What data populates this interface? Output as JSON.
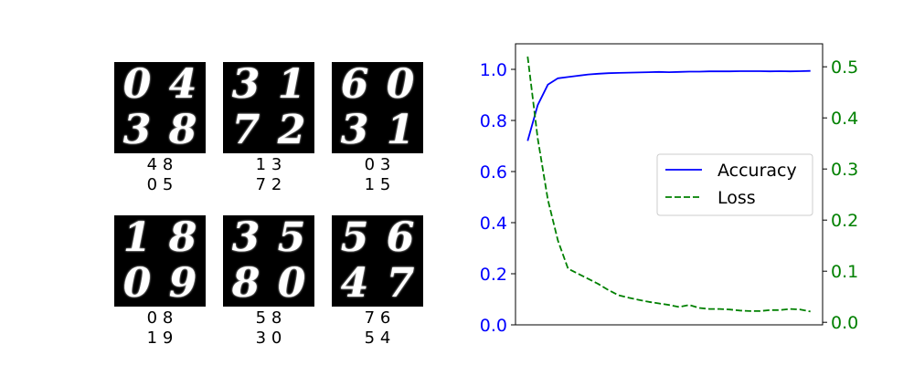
{
  "samples": [
    {
      "digits": [
        "0",
        "4",
        "3",
        "8"
      ],
      "caption_lines": [
        "4 8",
        "0 5"
      ]
    },
    {
      "digits": [
        "3",
        "1",
        "7",
        "2"
      ],
      "caption_lines": [
        "1 3",
        "7 2"
      ]
    },
    {
      "digits": [
        "6",
        "0",
        "3",
        "1"
      ],
      "caption_lines": [
        "0 3",
        "1 5"
      ]
    },
    {
      "digits": [
        "1",
        "8",
        "0",
        "9"
      ],
      "caption_lines": [
        "0 8",
        "1 9"
      ]
    },
    {
      "digits": [
        "3",
        "5",
        "8",
        "0"
      ],
      "caption_lines": [
        "5 8",
        "3 0"
      ]
    },
    {
      "digits": [
        "5",
        "6",
        "4",
        "7"
      ],
      "caption_lines": [
        "7 6",
        "5 4"
      ]
    }
  ],
  "chart_data": {
    "type": "line",
    "x": [
      0,
      1,
      2,
      3,
      4,
      5,
      6,
      7,
      8,
      9,
      10,
      11,
      12,
      13,
      14,
      15,
      16,
      17,
      18,
      19,
      20,
      21,
      22,
      23,
      24,
      25,
      26,
      27,
      28
    ],
    "series": [
      {
        "name": "Accuracy",
        "axis": "left",
        "color": "#0000ff",
        "style": "solid",
        "values": [
          0.72,
          0.86,
          0.94,
          0.965,
          0.97,
          0.975,
          0.98,
          0.983,
          0.985,
          0.986,
          0.987,
          0.988,
          0.989,
          0.99,
          0.989,
          0.99,
          0.991,
          0.991,
          0.992,
          0.992,
          0.992,
          0.993,
          0.993,
          0.993,
          0.992,
          0.993,
          0.992,
          0.993,
          0.994
        ]
      },
      {
        "name": "Loss",
        "axis": "right",
        "color": "#008000",
        "style": "dashed",
        "values": [
          0.52,
          0.36,
          0.24,
          0.16,
          0.105,
          0.095,
          0.085,
          0.075,
          0.063,
          0.053,
          0.048,
          0.044,
          0.04,
          0.037,
          0.034,
          0.03,
          0.034,
          0.028,
          0.026,
          0.026,
          0.025,
          0.023,
          0.022,
          0.022,
          0.024,
          0.024,
          0.026,
          0.025,
          0.021
        ]
      }
    ],
    "left_axis": {
      "color": "#0000ff",
      "ylim": [
        0.0,
        1.1
      ],
      "ticks": [
        0.0,
        0.2,
        0.4,
        0.6,
        0.8,
        1.0
      ],
      "tick_labels": [
        "0.0",
        "0.2",
        "0.4",
        "0.6",
        "0.8",
        "1.0"
      ]
    },
    "right_axis": {
      "color": "#008000",
      "ylim": [
        -0.005,
        0.545
      ],
      "ticks": [
        0.0,
        0.1,
        0.2,
        0.3,
        0.4,
        0.5
      ],
      "tick_labels": [
        "0.0",
        "0.1",
        "0.2",
        "0.3",
        "0.4",
        "0.5"
      ]
    },
    "xlim": [
      -1.2,
      29.2
    ],
    "x_ticks_visible": false,
    "grid": false,
    "legend": {
      "placement": "center-right",
      "entries": [
        "Accuracy",
        "Loss"
      ]
    },
    "title": "",
    "xlabel": "",
    "ylabel": ""
  }
}
